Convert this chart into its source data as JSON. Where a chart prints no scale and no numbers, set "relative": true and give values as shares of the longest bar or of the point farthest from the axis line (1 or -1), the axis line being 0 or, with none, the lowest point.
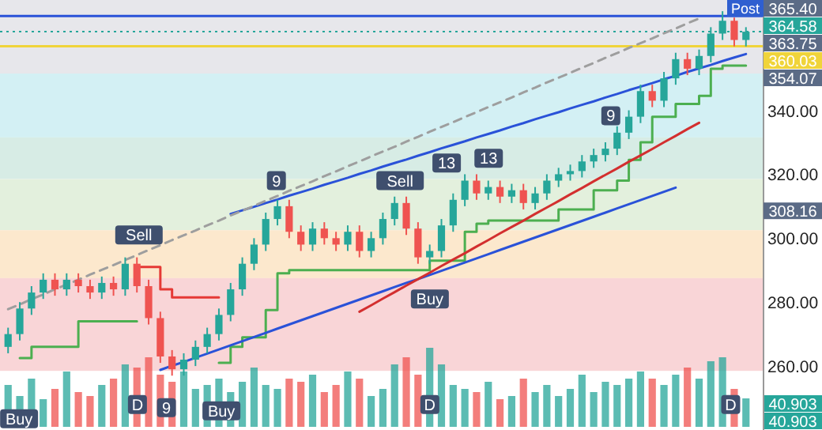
{
  "chart_data": [
    {
      "type": "candlestick",
      "tick_labels": "y",
      "categories": [
        null,
        null,
        null,
        null,
        null,
        null,
        null,
        null,
        null,
        null,
        null,
        null,
        null,
        null,
        null,
        null,
        null,
        null,
        null,
        null,
        null,
        null,
        null,
        null,
        null,
        null,
        null,
        null,
        null,
        null,
        null,
        null,
        null,
        null,
        null,
        null,
        null,
        null,
        null,
        null,
        null,
        null,
        null,
        null,
        null,
        null,
        null,
        null,
        null,
        null,
        null,
        null,
        null,
        null,
        null,
        null,
        null,
        null,
        null,
        null,
        null,
        null,
        null,
        null
      ],
      "ylim": [
        240,
        374.5
      ],
      "yticks": [
        {
          "value": 260,
          "label": "260.00"
        },
        {
          "value": 280,
          "label": "280.00"
        },
        {
          "value": 300,
          "label": "300.00"
        },
        {
          "value": 320,
          "label": "320.00"
        },
        {
          "value": 340,
          "label": "340.00"
        }
      ],
      "ohlc": [
        [
          266,
          272,
          264,
          270
        ],
        [
          270,
          280,
          268,
          278
        ],
        [
          278,
          285,
          276,
          283
        ],
        [
          283,
          289,
          281,
          287
        ],
        [
          287,
          289,
          282,
          284
        ],
        [
          284,
          289,
          282,
          287
        ],
        [
          287,
          289,
          283,
          285
        ],
        [
          285,
          287,
          281,
          283
        ],
        [
          283,
          288,
          281,
          286
        ],
        [
          286,
          288,
          282,
          284
        ],
        [
          284,
          294,
          282,
          292
        ],
        [
          292,
          294,
          283,
          285
        ],
        [
          285,
          287,
          273,
          275
        ],
        [
          275,
          277,
          261,
          263
        ],
        [
          263,
          265,
          257,
          259
        ],
        [
          259,
          264,
          257,
          262
        ],
        [
          262,
          268,
          260,
          266
        ],
        [
          266,
          272,
          264,
          270
        ],
        [
          270,
          278,
          268,
          276
        ],
        [
          276,
          286,
          274,
          284
        ],
        [
          284,
          294,
          282,
          292
        ],
        [
          292,
          300,
          290,
          298
        ],
        [
          298,
          308,
          296,
          306
        ],
        [
          306,
          312,
          304,
          310
        ],
        [
          310,
          312,
          300,
          302
        ],
        [
          302,
          304,
          296,
          298
        ],
        [
          298,
          305,
          296,
          303
        ],
        [
          303,
          305,
          298,
          300
        ],
        [
          300,
          302,
          296,
          298
        ],
        [
          298,
          304,
          296,
          302
        ],
        [
          302,
          304,
          294,
          296
        ],
        [
          296,
          302,
          294,
          300
        ],
        [
          300,
          308,
          298,
          306
        ],
        [
          306,
          313,
          304,
          311
        ],
        [
          311,
          313,
          301,
          303
        ],
        [
          303,
          305,
          292,
          294
        ],
        [
          294,
          298,
          292,
          296
        ],
        [
          296,
          306,
          294,
          304
        ],
        [
          304,
          314,
          302,
          312
        ],
        [
          312,
          320,
          310,
          318
        ],
        [
          318,
          320,
          312,
          314
        ],
        [
          314,
          318,
          312,
          316
        ],
        [
          316,
          318,
          311,
          313
        ],
        [
          313,
          317,
          311,
          315
        ],
        [
          315,
          317,
          309,
          311
        ],
        [
          311,
          316,
          309,
          314
        ],
        [
          314,
          320,
          312,
          318
        ],
        [
          318,
          322,
          316,
          320
        ],
        [
          320,
          323,
          318,
          321
        ],
        [
          321,
          326,
          319,
          324
        ],
        [
          324,
          328,
          322,
          326
        ],
        [
          326,
          330,
          324,
          328
        ],
        [
          328,
          335,
          326,
          333
        ],
        [
          333,
          340,
          331,
          338
        ],
        [
          338,
          348,
          336,
          346
        ],
        [
          346,
          348,
          341,
          343
        ],
        [
          343,
          352,
          341,
          350
        ],
        [
          350,
          358,
          348,
          356
        ],
        [
          356,
          358,
          351,
          353
        ],
        [
          353,
          359,
          351,
          357
        ],
        [
          357,
          366,
          355,
          364
        ],
        [
          364,
          371,
          362,
          368
        ],
        [
          368,
          369,
          360,
          362
        ],
        [
          362,
          366,
          360,
          364.58
        ]
      ],
      "series": [
        {
          "type": "step",
          "color": "#4caf50",
          "values": [
            null,
            262.5,
            266,
            266,
            266,
            266,
            274,
            274,
            274,
            274,
            274,
            274,
            null,
            null,
            null,
            null,
            null,
            null,
            261,
            266,
            269,
            269,
            277.5,
            289,
            290,
            290,
            290,
            290,
            290,
            290,
            290,
            290,
            290,
            290,
            290,
            290,
            293,
            293,
            293,
            302,
            304.5,
            305.5,
            305.5,
            305.5,
            305.5,
            305.5,
            305.5,
            309,
            309,
            309,
            315,
            315,
            318,
            324.5,
            330,
            338,
            338,
            342,
            342,
            344.5,
            353,
            354,
            354,
            354
          ]
        },
        {
          "type": "step",
          "color": "#e53935",
          "values": [
            null,
            null,
            null,
            null,
            null,
            null,
            null,
            null,
            null,
            null,
            null,
            291,
            291,
            284,
            281.5,
            281.5,
            281.5,
            281.5,
            281.5,
            null,
            null,
            null,
            null,
            null,
            null,
            null,
            null,
            null,
            null,
            null,
            null,
            null,
            null,
            null,
            null,
            null,
            null,
            null,
            null,
            null,
            null,
            null,
            null,
            null,
            null,
            null,
            null,
            null,
            null,
            null,
            null,
            null,
            null,
            null,
            null,
            null,
            null,
            null,
            null,
            null,
            null,
            null,
            null,
            null
          ]
        },
        {
          "type": "line",
          "color": "#2a52d8",
          "values": [
            null,
            null,
            null,
            null,
            null,
            null,
            null,
            null,
            null,
            null,
            null,
            null,
            null,
            null,
            null,
            null,
            null,
            null,
            null,
            307.6,
            308.7,
            309.8,
            311,
            312.1,
            313.3,
            314.4,
            315.5,
            316.7,
            317.8,
            318.9,
            320.1,
            321.2,
            322.4,
            323.5,
            324.6,
            325.8,
            326.9,
            328.1,
            329.2,
            330.3,
            331.5,
            332.6,
            333.7,
            334.9,
            336,
            337.2,
            338.3,
            339.4,
            340.6,
            341.7,
            342.8,
            344,
            345.1,
            346.3,
            347.4,
            348.5,
            349.7,
            350.8,
            352,
            353.1,
            354.2,
            355.4,
            356.5,
            357.6
          ]
        },
        {
          "type": "line",
          "color": "#2a52d8",
          "values": [
            null,
            null,
            null,
            null,
            null,
            null,
            null,
            null,
            null,
            null,
            null,
            null,
            null,
            258.8,
            260.1,
            261.3,
            262.6,
            263.9,
            265.2,
            266.5,
            267.8,
            269.1,
            270.4,
            271.7,
            273,
            274.3,
            275.6,
            276.9,
            278.2,
            279.5,
            280.8,
            282.1,
            283.4,
            284.7,
            286,
            287.2,
            288.5,
            289.8,
            291.1,
            292.4,
            293.7,
            295,
            296.3,
            297.6,
            298.9,
            300.2,
            301.5,
            302.8,
            304.1,
            305.4,
            306.7,
            308,
            309.3,
            310.6,
            311.9,
            313.2,
            314.5,
            315.8,
            null,
            null,
            null,
            null,
            null,
            null
          ]
        },
        {
          "type": "line",
          "color": "#d32f2f",
          "values": [
            null,
            null,
            null,
            null,
            null,
            null,
            null,
            null,
            null,
            null,
            null,
            null,
            null,
            null,
            null,
            null,
            null,
            null,
            null,
            null,
            null,
            null,
            null,
            null,
            null,
            null,
            null,
            null,
            null,
            null,
            277,
            279,
            281.1,
            283.1,
            285.2,
            287.2,
            289.2,
            291.3,
            293.3,
            295.3,
            297.4,
            299.4,
            301.5,
            303.5,
            305.5,
            307.6,
            309.6,
            311.6,
            313.7,
            315.7,
            317.8,
            319.8,
            321.8,
            323.9,
            325.9,
            327.9,
            330,
            332,
            334.1,
            336.1,
            null,
            null,
            null,
            null
          ]
        },
        {
          "type": "line",
          "color": "#9e9e9e",
          "line_style": "dashed",
          "values": [
            277.8,
            279.3,
            280.9,
            282.4,
            284,
            285.5,
            287,
            288.6,
            290.1,
            291.6,
            293.2,
            294.7,
            296.3,
            297.8,
            299.4,
            300.9,
            302.4,
            304,
            305.5,
            307.1,
            308.6,
            310.1,
            311.7,
            313.2,
            314.8,
            316.3,
            317.8,
            319.4,
            320.9,
            322.5,
            324,
            325.6,
            327.1,
            328.6,
            330.2,
            331.7,
            333.3,
            334.8,
            336.3,
            337.9,
            339.4,
            341,
            342.5,
            344,
            345.6,
            347.1,
            348.7,
            350.2,
            351.7,
            353.3,
            354.8,
            356.4,
            357.9,
            359.5,
            361,
            362.5,
            364.1,
            365.6,
            367.2,
            368.7,
            null,
            null,
            null,
            null
          ]
        }
      ],
      "bands": [
        {
          "axis": "y",
          "from": 351.5,
          "to": 374.5,
          "color": "#e7e7eb"
        },
        {
          "axis": "y",
          "from": 331.5,
          "to": 351.5,
          "color": "#d3f0f4"
        },
        {
          "axis": "y",
          "from": 318.5,
          "to": 331.5,
          "color": "#d7ece5"
        },
        {
          "axis": "y",
          "from": 302.5,
          "to": 318.5,
          "color": "#e3f0dd"
        },
        {
          "axis": "y",
          "from": 287.5,
          "to": 302.5,
          "color": "#fce8cd"
        },
        {
          "axis": "y",
          "from": 258.5,
          "to": 287.5,
          "color": "#f9d5d7"
        }
      ],
      "ref_lines": [
        {
          "axis": "y",
          "value": 369.5,
          "color": "#2a52d8"
        },
        {
          "axis": "y",
          "value": 364.58,
          "label": "364.58",
          "color": "#26a69a",
          "line_style": "dotted"
        },
        {
          "axis": "y",
          "value": 360.03,
          "label": "360.03",
          "color": "#f0d43a"
        }
      ],
      "annotations": [
        "365.40",
        "363.75",
        "354.07",
        "308.16",
        "Post",
        {
          "text": "Sell",
          "y": 301
        },
        {
          "text": "Sell",
          "y": 318
        },
        {
          "text": "Buy",
          "y": 243.5
        },
        {
          "text": "Buy",
          "y": 246
        },
        {
          "text": "Buy",
          "y": 281
        },
        {
          "text": "9",
          "y": 318
        },
        {
          "text": "9",
          "y": 338.3
        },
        {
          "text": "9",
          "y": 247
        },
        {
          "text": "13",
          "y": 323.5
        },
        {
          "text": "13",
          "y": 325
        },
        {
          "text": "D",
          "y": 248
        },
        {
          "text": "D",
          "y": 248
        },
        {
          "text": "D",
          "y": 248
        }
      ]
    },
    {
      "type": "bar",
      "relative": true,
      "categories": [
        null,
        null,
        null,
        null,
        null,
        null,
        null,
        null,
        null,
        null,
        null,
        null,
        null,
        null,
        null,
        null,
        null,
        null,
        null,
        null,
        null,
        null,
        null,
        null,
        null,
        null,
        null,
        null,
        null,
        null,
        null,
        null,
        null,
        null,
        null,
        null,
        null,
        null,
        null,
        null,
        null,
        null,
        null,
        null,
        null,
        null,
        null,
        null,
        null,
        null,
        null,
        null,
        null,
        null,
        null,
        null,
        null,
        null,
        null,
        null,
        null,
        null,
        null,
        null
      ],
      "values": [
        0.53,
        0.39,
        0.61,
        0.35,
        0.48,
        0.7,
        0.44,
        0.39,
        0.53,
        0.61,
        0.79,
        0.75,
        0.88,
        0.66,
        0.57,
        0.7,
        0.48,
        0.53,
        0.61,
        0.44,
        0.57,
        0.75,
        0.53,
        0.48,
        0.61,
        0.57,
        0.66,
        0.44,
        0.53,
        0.7,
        0.61,
        0.39,
        0.48,
        0.79,
        0.88,
        0.66,
        1,
        0.79,
        0.53,
        0.48,
        0.44,
        0.57,
        0.35,
        0.39,
        0.61,
        0.44,
        0.53,
        0.39,
        0.48,
        0.66,
        0.44,
        0.57,
        0.53,
        0.61,
        0.7,
        0.61,
        0.53,
        0.66,
        0.75,
        0.61,
        0.83,
        0.88,
        0.48,
        0.36
      ],
      "colors": [
        "#26a69a",
        "#26a69a",
        "#26a69a",
        "#26a69a",
        "#ef5350",
        "#26a69a",
        "#ef5350",
        "#ef5350",
        "#26a69a",
        "#ef5350",
        "#26a69a",
        "#ef5350",
        "#ef5350",
        "#ef5350",
        "#ef5350",
        "#26a69a",
        "#26a69a",
        "#26a69a",
        "#26a69a",
        "#26a69a",
        "#26a69a",
        "#26a69a",
        "#26a69a",
        "#26a69a",
        "#ef5350",
        "#ef5350",
        "#26a69a",
        "#ef5350",
        "#ef5350",
        "#26a69a",
        "#ef5350",
        "#26a69a",
        "#26a69a",
        "#26a69a",
        "#ef5350",
        "#ef5350",
        "#26a69a",
        "#26a69a",
        "#26a69a",
        "#26a69a",
        "#ef5350",
        "#26a69a",
        "#ef5350",
        "#26a69a",
        "#ef5350",
        "#26a69a",
        "#26a69a",
        "#26a69a",
        "#26a69a",
        "#26a69a",
        "#26a69a",
        "#26a69a",
        "#26a69a",
        "#26a69a",
        "#26a69a",
        "#ef5350",
        "#26a69a",
        "#26a69a",
        "#ef5350",
        "#26a69a",
        "#26a69a",
        "#26a69a",
        "#ef5350",
        "#26a69a"
      ],
      "annotations": [
        "40.903",
        "40.903"
      ]
    }
  ]
}
